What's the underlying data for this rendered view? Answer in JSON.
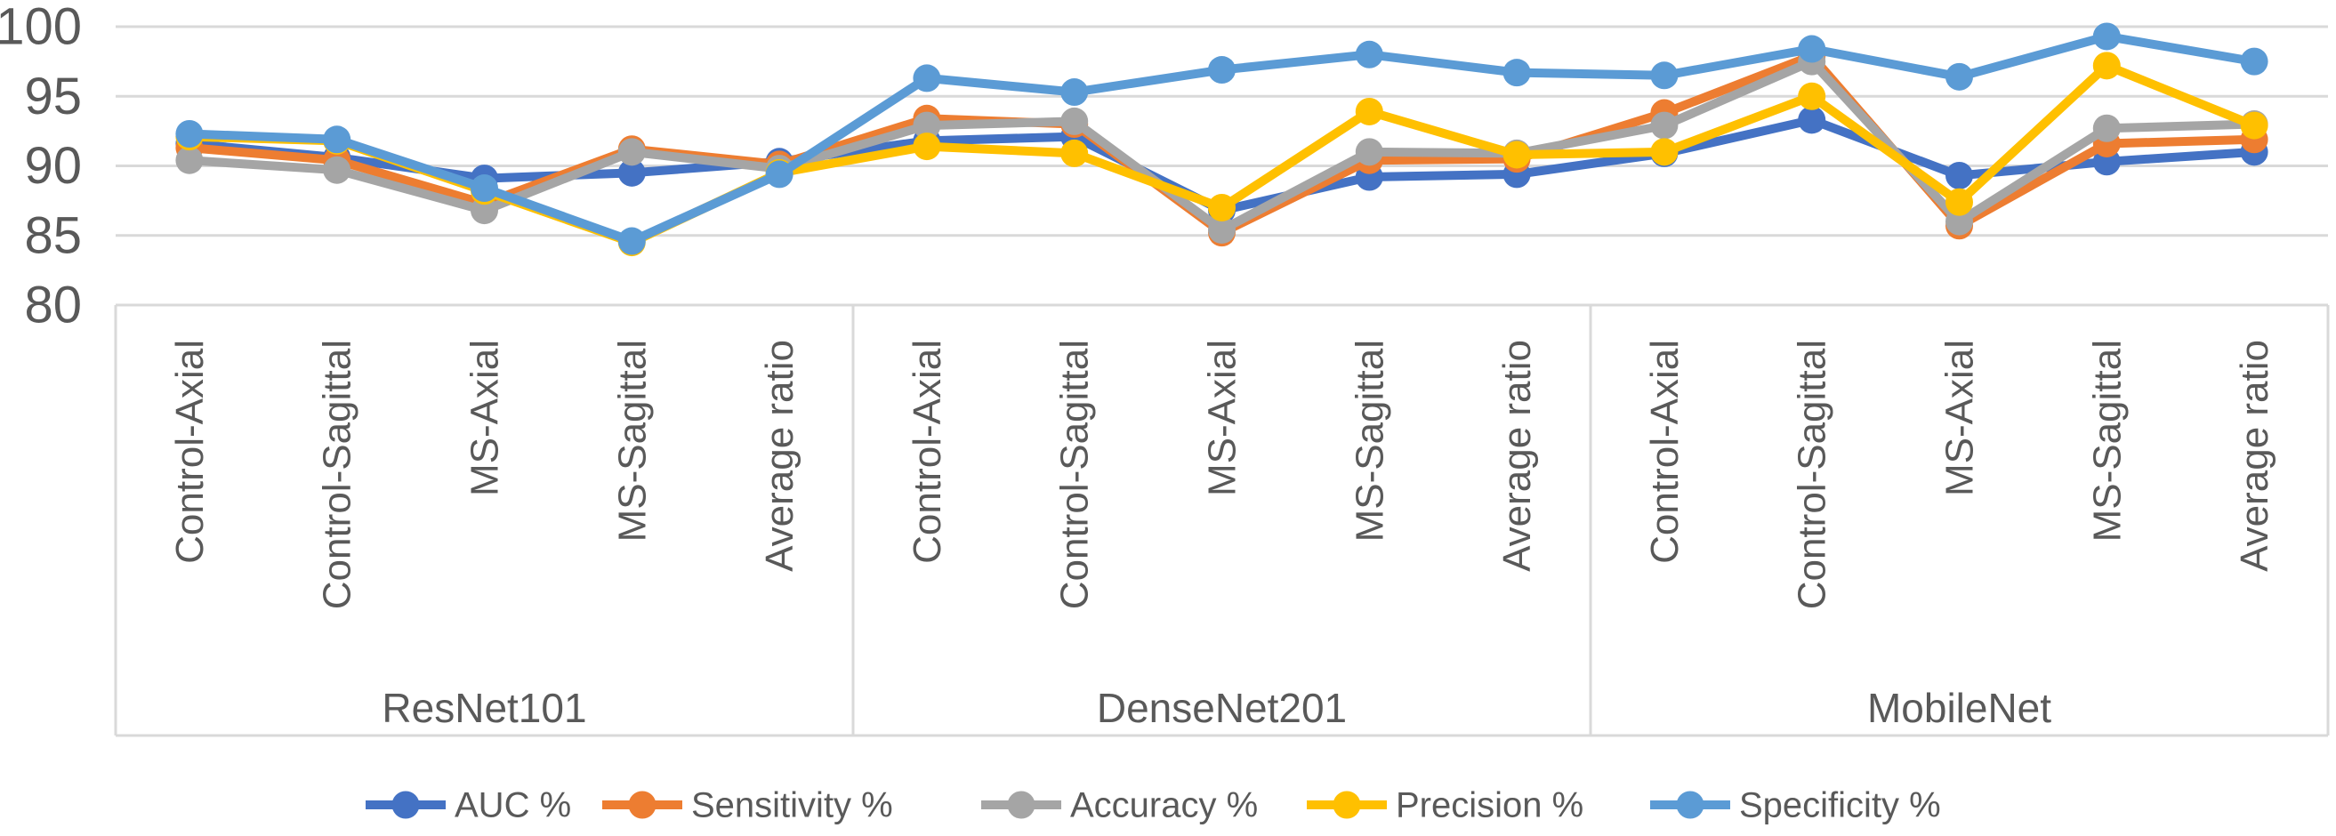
{
  "chart_data": {
    "type": "line",
    "title": "",
    "ylim": [
      80,
      100
    ],
    "yticks": [
      80,
      85,
      90,
      95,
      100
    ],
    "grid": true,
    "legend_position": "bottom",
    "categories": [
      "Control-Axial",
      "Control-Sagittal",
      "MS-Axial",
      "MS-Sagittal",
      "Average ratio",
      "Control-Axial",
      "Control-Sagittal",
      "MS-Axial",
      "MS-Sagittal",
      "Average ratio",
      "Control-Axial",
      "Control-Sagittal",
      "MS-Axial",
      "MS-Sagittal",
      "Average ratio"
    ],
    "groups": [
      {
        "label": "ResNet101",
        "span": 5
      },
      {
        "label": "DenseNet201",
        "span": 5
      },
      {
        "label": "MobileNet",
        "span": 5
      }
    ],
    "series": [
      {
        "name": "AUC %",
        "color": "#4472C4",
        "values": [
          91.6,
          90.6,
          89.1,
          89.5,
          90.3,
          91.8,
          92.1,
          86.8,
          89.2,
          89.4,
          90.9,
          93.3,
          89.3,
          90.3,
          91.0
        ]
      },
      {
        "name": "Sensitivity %",
        "color": "#ED7D31",
        "values": [
          91.3,
          90.4,
          87.3,
          91.2,
          90.1,
          93.4,
          93.0,
          85.2,
          90.4,
          90.5,
          93.8,
          97.9,
          85.7,
          91.6,
          91.9
        ]
      },
      {
        "name": "Accuracy %",
        "color": "#A5A5A5",
        "values": [
          90.4,
          89.7,
          86.8,
          91.0,
          89.8,
          92.9,
          93.2,
          85.4,
          91.0,
          90.9,
          92.9,
          97.5,
          86.0,
          92.7,
          93.0
        ]
      },
      {
        "name": "Precision %",
        "color": "#FFC000",
        "values": [
          92.1,
          91.8,
          88.2,
          84.5,
          89.5,
          91.4,
          90.9,
          87.0,
          93.9,
          90.8,
          91.0,
          95.0,
          87.4,
          97.2,
          92.9
        ]
      },
      {
        "name": "Specificity %",
        "color": "#5B9BD5",
        "values": [
          92.3,
          91.9,
          88.4,
          84.6,
          89.4,
          96.3,
          95.3,
          96.9,
          98.0,
          96.7,
          96.5,
          98.4,
          96.4,
          99.3,
          97.5
        ]
      }
    ],
    "colors": {
      "gridline": "#D9D9D9",
      "axis_text": "#595959",
      "background": "#FFFFFF"
    }
  }
}
